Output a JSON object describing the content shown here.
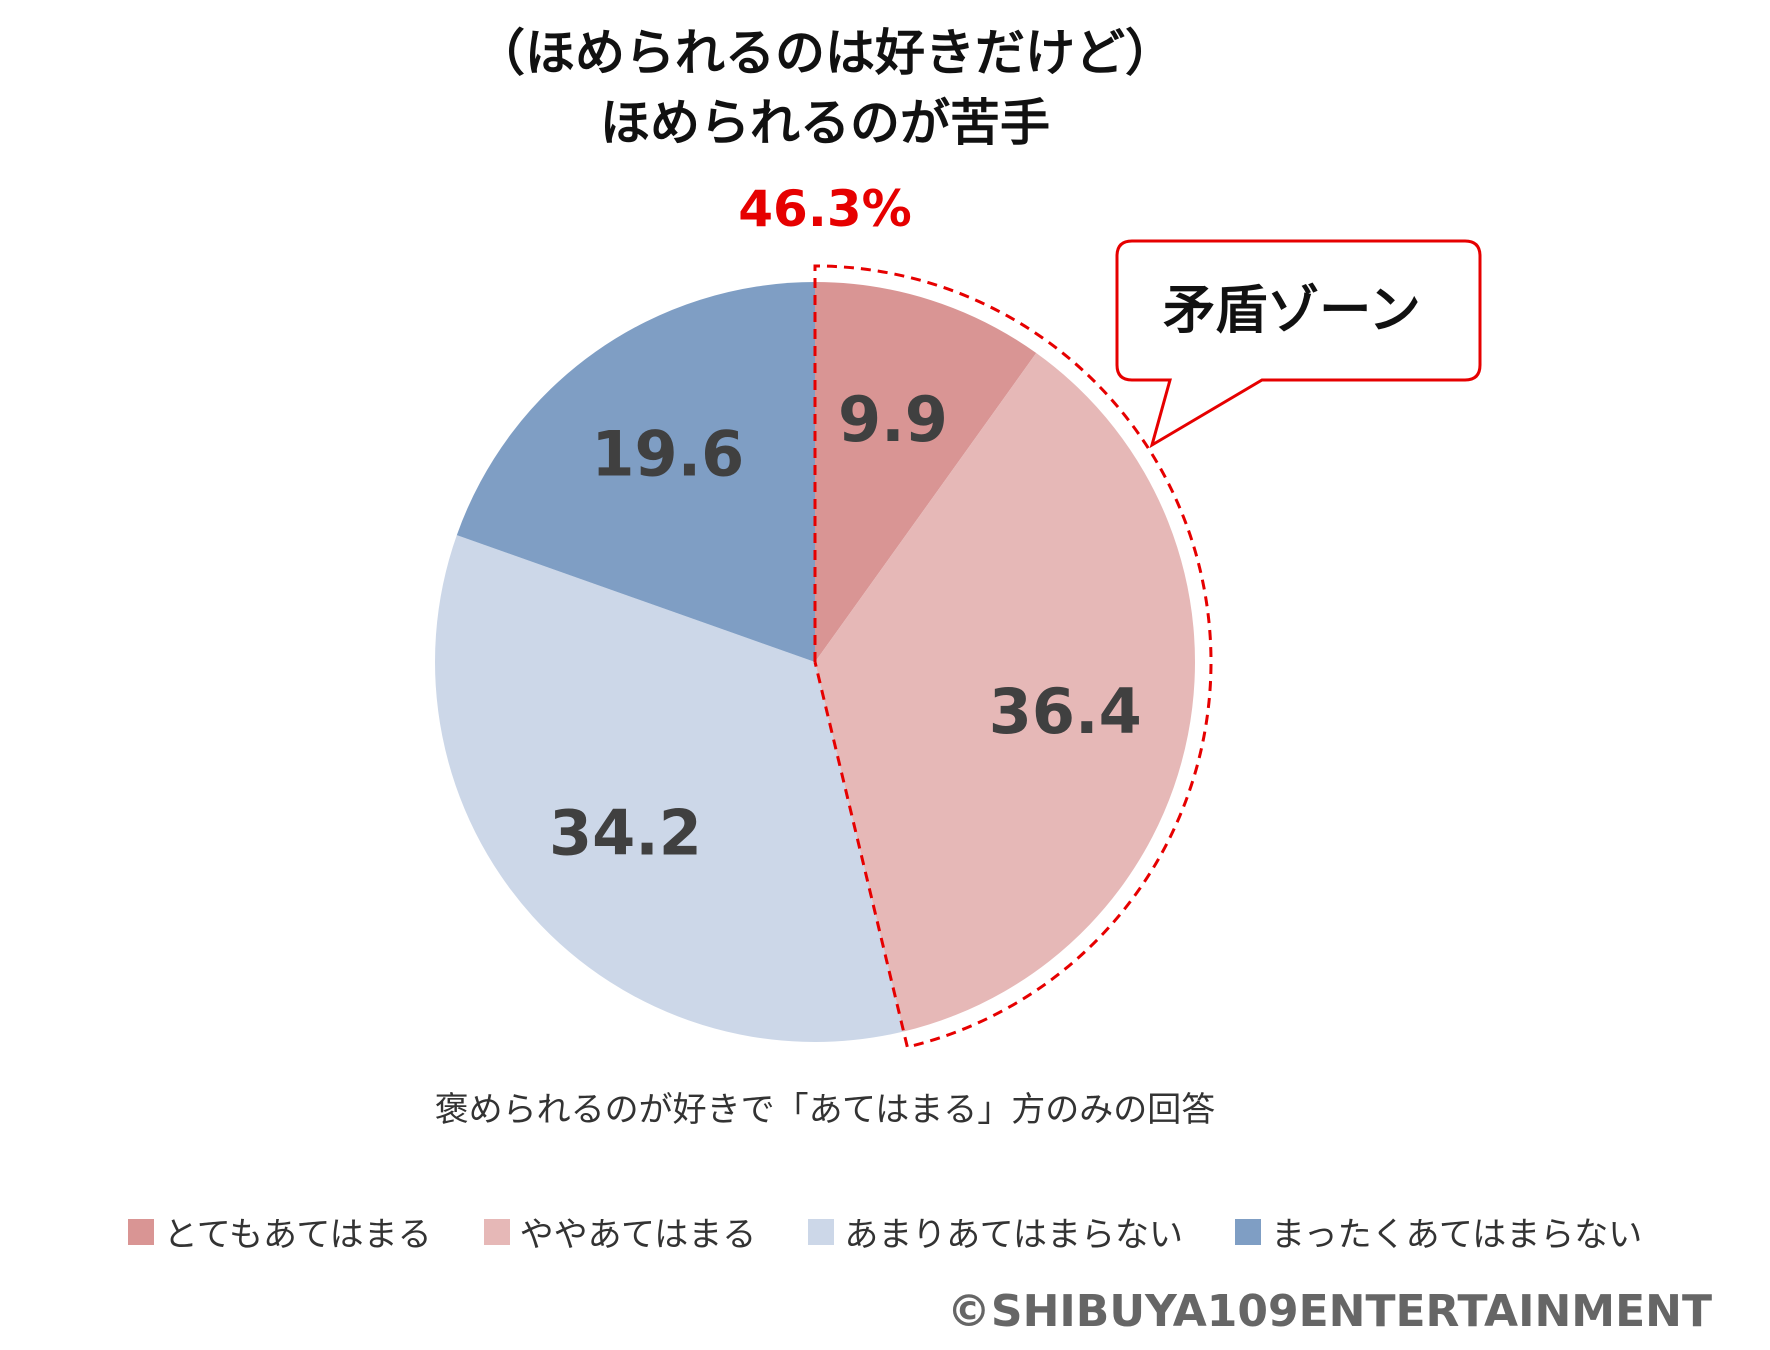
{
  "chart_data": {
    "type": "pie",
    "title": "（ほめられるのは好きだけど）",
    "subtitle": "ほめられるのが苦手",
    "highlight_total": "46.3%",
    "callout": "矛盾ゾーン",
    "note": "褒められるのが好きで「あてはまる」方のみの回答",
    "slices": [
      {
        "label": "とてもあてはまる",
        "value": 9.9,
        "display": "9.9",
        "color": "#d99594"
      },
      {
        "label": "ややあてはまる",
        "value": 36.4,
        "display": "36.4",
        "color": "#e6b8b7"
      },
      {
        "label": "あまりあてはまらない",
        "value": 34.2,
        "display": "34.2",
        "color": "#ccd7e8"
      },
      {
        "label": "まったくあてはまらない",
        "value": 19.6,
        "display": "19.6",
        "color": "#7f9ec4"
      }
    ],
    "legend_position": "bottom",
    "highlight_color": "#e60000",
    "label_color": "#404040"
  },
  "credit": "©SHIBUYA109ENTERTAINMENT"
}
